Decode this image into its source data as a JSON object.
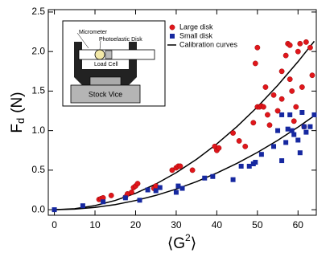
{
  "chart_data": {
    "type": "scatter",
    "ylabel": "F",
    "ylabel_subscript": "d",
    "ylabel_unit": "(N)",
    "xlabel_parts": [
      "⟨G",
      "2",
      "⟩"
    ],
    "xlim": [
      -1.5,
      64.5
    ],
    "ylim": [
      -0.07,
      2.53
    ],
    "xticks": [
      0,
      10,
      20,
      30,
      40,
      50,
      60
    ],
    "yticks": [
      {
        "value": 0,
        "label": "0.0"
      },
      0.5,
      {
        "value": 1,
        "label": "1.0"
      },
      1.5,
      {
        "value": 2,
        "label": "2.0"
      },
      2.5
    ],
    "legend": "top-right",
    "series": [
      {
        "name": "Large disk",
        "color": "#e0161b",
        "marker": "circle",
        "x": [
          11,
          11.5,
          12,
          14,
          17.5,
          18,
          19,
          19.5,
          20,
          20.5,
          24.5,
          25,
          29,
          30,
          30.5,
          31,
          34,
          39.5,
          40,
          40.5,
          44,
          45.5,
          47,
          49,
          50,
          50.5,
          51,
          51.5,
          52,
          52.5,
          53,
          55,
          56,
          57,
          57.5,
          58,
          58.5,
          59.5,
          60,
          60.5,
          61,
          62,
          63,
          63.5,
          49.5,
          50,
          54,
          56,
          58,
          61.5,
          59
        ],
        "values": [
          0.13,
          0.14,
          0.15,
          0.18,
          0.16,
          0.2,
          0.22,
          0.28,
          0.3,
          0.33,
          0.27,
          0.3,
          0.5,
          0.53,
          0.55,
          0.55,
          0.5,
          0.8,
          0.75,
          0.78,
          0.97,
          0.87,
          0.8,
          1.1,
          1.3,
          1.3,
          1.31,
          1.3,
          1.55,
          1.2,
          1.07,
          1.25,
          1.4,
          1.95,
          2.1,
          1.65,
          1.5,
          1.3,
          2.0,
          2.1,
          1.55,
          2.12,
          2.05,
          1.7,
          1.85,
          2.05,
          1.45,
          1.75,
          2.08,
          1.05,
          1.12
        ]
      },
      {
        "name": "Small disk",
        "color": "#1628a0",
        "marker": "square",
        "x": [
          0,
          7,
          12,
          17.5,
          21,
          23,
          25,
          26,
          30,
          30.5,
          31.5,
          37,
          39,
          44,
          46,
          48,
          49,
          49.5,
          51,
          54,
          55,
          56,
          57,
          57.5,
          58,
          58.5,
          59,
          60,
          60.5,
          61,
          61.5,
          62,
          63,
          64,
          56
        ],
        "values": [
          0,
          0.05,
          0.1,
          0.15,
          0.12,
          0.25,
          0.24,
          0.28,
          0.22,
          0.3,
          0.27,
          0.4,
          0.42,
          0.38,
          0.55,
          0.55,
          0.58,
          0.6,
          0.7,
          0.8,
          1.0,
          0.62,
          0.85,
          1.02,
          1.2,
          1.0,
          0.95,
          0.88,
          0.72,
          1.23,
          1.05,
          0.98,
          1.05,
          1.2,
          1.2
        ]
      }
    ],
    "curves": [
      {
        "name": "Calibration curves",
        "color": "#000000",
        "x": [
          0,
          5,
          10,
          15,
          20,
          25,
          30,
          35,
          40,
          45,
          50,
          55,
          60,
          64
        ],
        "values": [
          0,
          0.013,
          0.052,
          0.117,
          0.208,
          0.325,
          0.468,
          0.637,
          0.832,
          1.053,
          1.3,
          1.573,
          1.872,
          2.13
        ]
      },
      {
        "color": "#000000",
        "x": [
          0,
          5,
          10,
          15,
          20,
          25,
          30,
          35,
          40,
          45,
          50,
          55,
          60,
          64
        ],
        "values": [
          0,
          0.007,
          0.029,
          0.065,
          0.116,
          0.181,
          0.261,
          0.355,
          0.464,
          0.587,
          0.725,
          0.877,
          1.044,
          1.188
        ]
      }
    ],
    "annotations": [
      "Micrometer",
      "Photoelastic Disk",
      "Load Cell",
      "Stock Vice"
    ]
  }
}
